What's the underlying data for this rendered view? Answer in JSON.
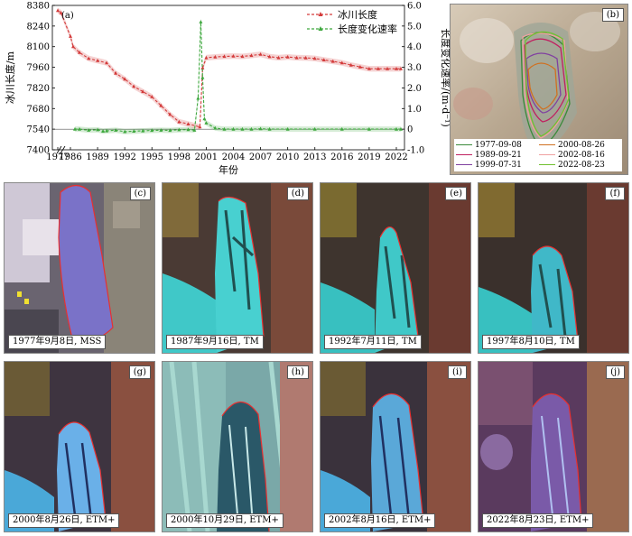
{
  "chart_data": {
    "type": "line",
    "panel_label": "(a)",
    "xlabel": "年份",
    "ylabel_left": "冰川长度/m",
    "ylabel_right": "长度变化速率/(m·d⁻¹)",
    "x_ticks": [
      "1977",
      "1986",
      "1989",
      "1992",
      "1995",
      "1998",
      "2001",
      "2004",
      "2007",
      "2010",
      "2013",
      "2016",
      "2019",
      "2022"
    ],
    "y_left_ticks": [
      "7400",
      "7540",
      "7680",
      "7820",
      "7960",
      "8100",
      "8240",
      "8380"
    ],
    "y_right_ticks": [
      "-1.0",
      "0",
      "1.0",
      "2.0",
      "3.0",
      "4.0",
      "5.0",
      "6.0"
    ],
    "y_left_lim": [
      7400,
      8380
    ],
    "y_right_lim": [
      -1.0,
      6.0
    ],
    "legend": {
      "position": "top-right"
    },
    "series": [
      {
        "name": "冰川长度",
        "axis": "left",
        "color": "#d33a3a",
        "points": [
          [
            1977,
            8345
          ],
          [
            1977.6,
            8330
          ],
          [
            1986,
            8170
          ],
          [
            1986.3,
            8100
          ],
          [
            1987,
            8060
          ],
          [
            1988,
            8020
          ],
          [
            1989,
            8005
          ],
          [
            1990,
            7990
          ],
          [
            1991,
            7920
          ],
          [
            1992,
            7880
          ],
          [
            1993,
            7830
          ],
          [
            1994,
            7795
          ],
          [
            1995,
            7760
          ],
          [
            1996,
            7700
          ],
          [
            1997,
            7640
          ],
          [
            1998,
            7590
          ],
          [
            1999,
            7575
          ],
          [
            2000.3,
            7555
          ],
          [
            2000.6,
            7955
          ],
          [
            2001,
            8025
          ],
          [
            2002,
            8030
          ],
          [
            2003,
            8034
          ],
          [
            2004,
            8036
          ],
          [
            2005,
            8034
          ],
          [
            2006,
            8040
          ],
          [
            2007,
            8048
          ],
          [
            2008,
            8032
          ],
          [
            2009,
            8025
          ],
          [
            2010,
            8030
          ],
          [
            2011,
            8025
          ],
          [
            2012,
            8024
          ],
          [
            2013,
            8020
          ],
          [
            2014,
            8010
          ],
          [
            2015,
            8000
          ],
          [
            2016,
            7990
          ],
          [
            2017,
            7975
          ],
          [
            2018,
            7962
          ],
          [
            2019,
            7950
          ],
          [
            2020,
            7950
          ],
          [
            2021,
            7950
          ],
          [
            2022,
            7950
          ],
          [
            2022.5,
            7950
          ]
        ]
      },
      {
        "name": "长度变化速率",
        "axis": "right",
        "color": "#3fa83f",
        "points": [
          [
            1986.5,
            0
          ],
          [
            1987,
            0
          ],
          [
            1988,
            -0.05
          ],
          [
            1989,
            -0.03
          ],
          [
            1989.6,
            -0.1
          ],
          [
            1990,
            -0.08
          ],
          [
            1991,
            -0.05
          ],
          [
            1992,
            -0.12
          ],
          [
            1993,
            -0.1
          ],
          [
            1994,
            -0.08
          ],
          [
            1995,
            -0.06
          ],
          [
            1996,
            -0.05
          ],
          [
            1997,
            -0.06
          ],
          [
            1998,
            -0.03
          ],
          [
            1999,
            -0.02
          ],
          [
            1999.7,
            -0.05
          ],
          [
            2000.1,
            1.5
          ],
          [
            2000.4,
            5.2
          ],
          [
            2000.6,
            2.5
          ],
          [
            2000.8,
            0.5
          ],
          [
            2001,
            0.3
          ],
          [
            2002,
            0.05
          ],
          [
            2003,
            0
          ],
          [
            2004,
            0
          ],
          [
            2005,
            0
          ],
          [
            2006,
            0
          ],
          [
            2007,
            0.02
          ],
          [
            2008,
            0
          ],
          [
            2010,
            0
          ],
          [
            2013,
            0
          ],
          [
            2016,
            0
          ],
          [
            2019,
            0
          ],
          [
            2022,
            0
          ],
          [
            2022.5,
            0
          ]
        ]
      }
    ]
  },
  "inset": {
    "label": "(b)",
    "legend": [
      {
        "date": "1977-09-08",
        "color": "#3a8a3a"
      },
      {
        "date": "2000-08-26",
        "color": "#d07020"
      },
      {
        "date": "1989-09-21",
        "color": "#c02060"
      },
      {
        "date": "2002-08-16",
        "color": "#f0a0a0"
      },
      {
        "date": "1999-07-31",
        "color": "#8040a0"
      },
      {
        "date": "2022-08-23",
        "color": "#70c030"
      }
    ]
  },
  "images": [
    {
      "label": "(c)",
      "caption": "1977年9月8日, MSS"
    },
    {
      "label": "(d)",
      "caption": "1987年9月16日, TM"
    },
    {
      "label": "(e)",
      "caption": "1992年7月11日, TM"
    },
    {
      "label": "(f)",
      "caption": "1997年8月10日, TM"
    },
    {
      "label": "(g)",
      "caption": "2000年8月26日, ETM+"
    },
    {
      "label": "(h)",
      "caption": "2000年10月29日, ETM+"
    },
    {
      "label": "(i)",
      "caption": "2002年8月16日, ETM+"
    },
    {
      "label": "(j)",
      "caption": "2022年8月23日, ETM+"
    }
  ]
}
